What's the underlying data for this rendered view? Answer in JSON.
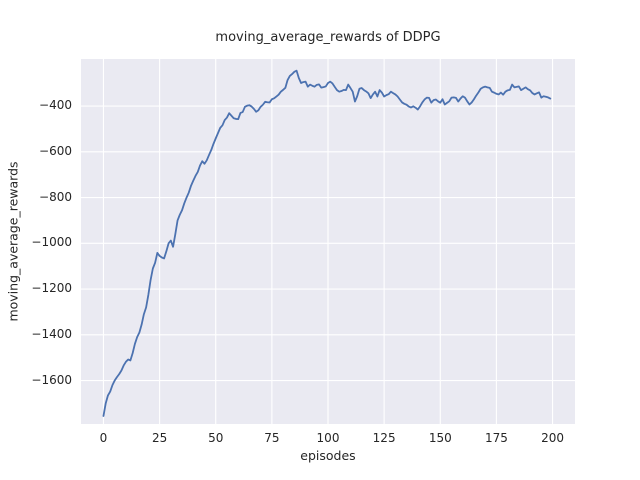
{
  "figure": {
    "background": "#ffffff",
    "plot_background": "#eaeaf2",
    "grid_color": "#ffffff",
    "text_color": "#262626"
  },
  "chart_data": {
    "type": "line",
    "title": "moving_average_rewards of DDPG",
    "xlabel": "episodes",
    "ylabel": "moving_average_rewards",
    "xlim": [
      -10,
      210
    ],
    "ylim": [
      -1790,
      -194
    ],
    "x_ticks": [
      0,
      25,
      50,
      75,
      100,
      125,
      150,
      175,
      200
    ],
    "y_ticks": [
      -400,
      -600,
      -800,
      -1000,
      -1200,
      -1400,
      -1600
    ],
    "grid": true,
    "legend_position": "none",
    "line_color": "#4C72B0",
    "line_width": 1.8,
    "series": [
      {
        "name": "moving_average_rewards",
        "x_start": 0,
        "x_step": 1,
        "values": [
          -1755,
          -1700,
          -1665,
          -1648,
          -1620,
          -1600,
          -1585,
          -1572,
          -1556,
          -1534,
          -1518,
          -1508,
          -1512,
          -1480,
          -1440,
          -1410,
          -1390,
          -1355,
          -1310,
          -1280,
          -1225,
          -1160,
          -1110,
          -1085,
          -1042,
          -1055,
          -1062,
          -1066,
          -1035,
          -1000,
          -988,
          -1015,
          -960,
          -900,
          -875,
          -855,
          -825,
          -800,
          -778,
          -748,
          -726,
          -705,
          -688,
          -660,
          -641,
          -652,
          -637,
          -614,
          -592,
          -565,
          -541,
          -518,
          -495,
          -484,
          -461,
          -450,
          -431,
          -442,
          -453,
          -456,
          -457,
          -430,
          -426,
          -403,
          -398,
          -396,
          -402,
          -412,
          -425,
          -418,
          -403,
          -394,
          -381,
          -383,
          -384,
          -370,
          -366,
          -358,
          -350,
          -337,
          -329,
          -320,
          -286,
          -268,
          -260,
          -250,
          -245,
          -277,
          -299,
          -295,
          -293,
          -315,
          -306,
          -311,
          -315,
          -307,
          -305,
          -319,
          -317,
          -314,
          -299,
          -293,
          -301,
          -316,
          -330,
          -337,
          -334,
          -329,
          -330,
          -306,
          -321,
          -337,
          -380,
          -357,
          -324,
          -321,
          -330,
          -336,
          -344,
          -365,
          -349,
          -337,
          -358,
          -330,
          -341,
          -358,
          -352,
          -348,
          -337,
          -343,
          -349,
          -358,
          -371,
          -384,
          -390,
          -394,
          -402,
          -406,
          -401,
          -407,
          -415,
          -401,
          -384,
          -371,
          -363,
          -364,
          -385,
          -374,
          -371,
          -379,
          -385,
          -370,
          -393,
          -386,
          -379,
          -363,
          -362,
          -364,
          -380,
          -367,
          -357,
          -363,
          -379,
          -393,
          -384,
          -370,
          -354,
          -340,
          -324,
          -318,
          -315,
          -318,
          -320,
          -337,
          -341,
          -346,
          -349,
          -341,
          -350,
          -337,
          -331,
          -329,
          -306,
          -318,
          -316,
          -314,
          -330,
          -324,
          -318,
          -326,
          -331,
          -343,
          -349,
          -344,
          -340,
          -363,
          -357,
          -359,
          -362,
          -367
        ]
      }
    ]
  }
}
